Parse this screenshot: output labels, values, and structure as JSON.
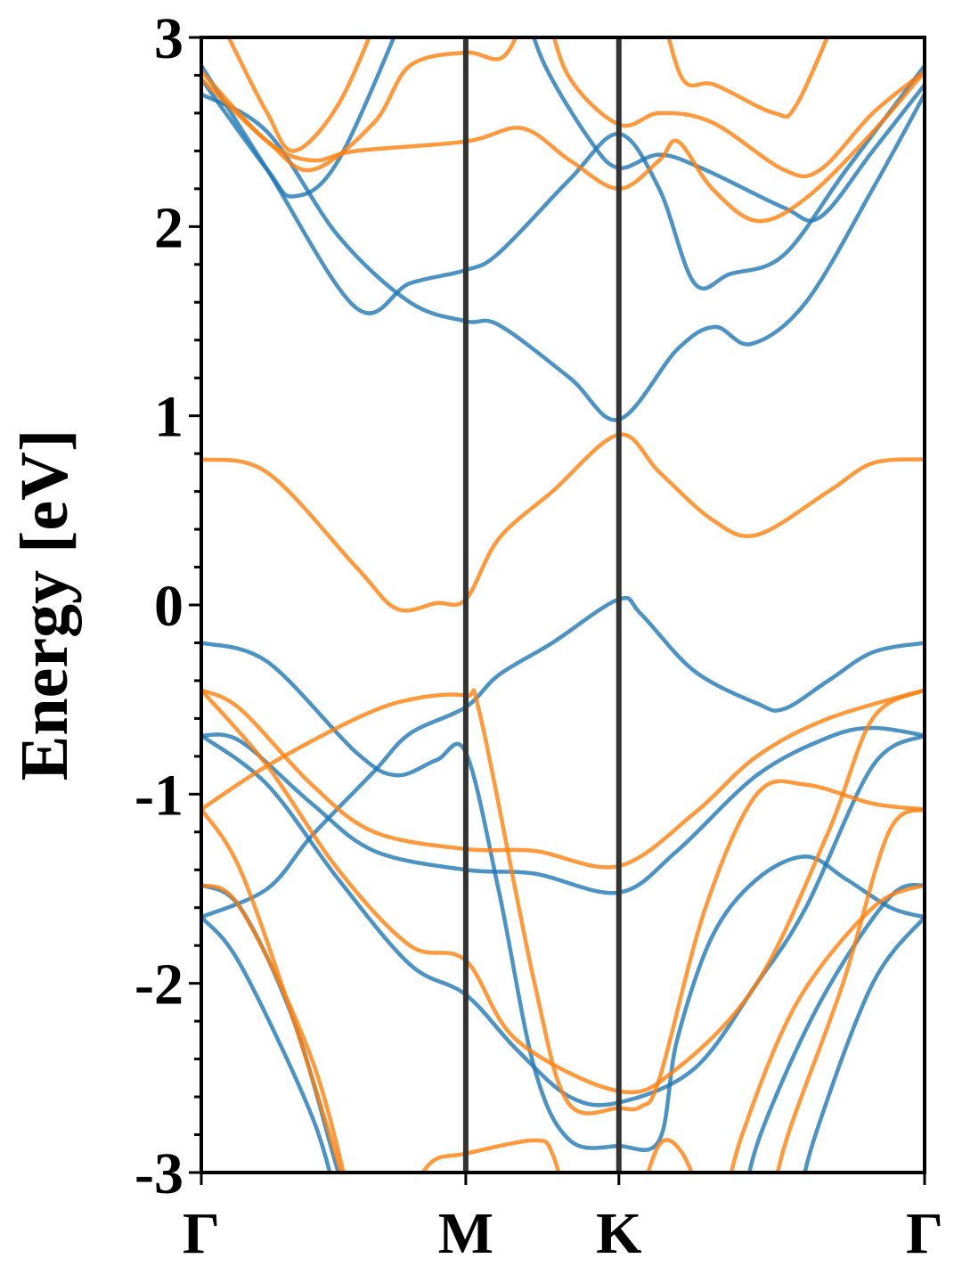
{
  "chart_data": {
    "type": "line",
    "title": "",
    "xlabel": "",
    "ylabel": "Energy [eV]",
    "ylim": [
      -3,
      3
    ],
    "xlim": [
      0,
      1.578
    ],
    "yticks": [
      3,
      2,
      1,
      0,
      -1,
      -2,
      -3
    ],
    "ytick_labels": [
      "3",
      "2",
      "1",
      "0",
      "-1",
      "-2",
      "-3"
    ],
    "y_minor_step": 0.2,
    "xticks": [
      0,
      0.577,
      0.911,
      1.578
    ],
    "xtick_labels": [
      "Γ",
      "M",
      "K",
      "Γ"
    ],
    "grid": false,
    "high_symmetry_lines": [
      0.577,
      0.911
    ],
    "colors": {
      "spin_a": "#1f77b4",
      "spin_b": "#ff7f0e",
      "symmetry_line": "#333333"
    },
    "series": [
      {
        "name": "blue-1",
        "color": "spin_a",
        "points": [
          [
            0,
            -0.2
          ],
          [
            0.144,
            -0.3
          ],
          [
            0.338,
            -0.78
          ],
          [
            0.426,
            -0.9
          ],
          [
            0.513,
            -0.82
          ],
          [
            0.577,
            -0.78
          ],
          [
            0.649,
            -1.51
          ],
          [
            0.727,
            -2.45
          ],
          [
            0.804,
            -2.83
          ],
          [
            0.911,
            -2.86
          ],
          [
            0.999,
            -2.83
          ],
          [
            1.038,
            -2.3
          ],
          [
            1.115,
            -1.75
          ],
          [
            1.212,
            -1.45
          ],
          [
            1.319,
            -1.33
          ],
          [
            1.407,
            -1.45
          ],
          [
            1.504,
            -1.6
          ],
          [
            1.578,
            -1.65
          ]
        ]
      },
      {
        "name": "blue-2",
        "color": "spin_a",
        "points": [
          [
            0,
            -1.65
          ],
          [
            0.144,
            -1.5
          ],
          [
            0.241,
            -1.22
          ],
          [
            0.377,
            -0.88
          ],
          [
            0.455,
            -0.68
          ],
          [
            0.577,
            -0.54
          ],
          [
            0.649,
            -0.37
          ],
          [
            0.766,
            -0.2
          ],
          [
            0.911,
            0.03
          ],
          [
            0.96,
            -0.05
          ],
          [
            1.076,
            -0.35
          ],
          [
            1.212,
            -0.52
          ],
          [
            1.271,
            -0.55
          ],
          [
            1.368,
            -0.4
          ],
          [
            1.465,
            -0.25
          ],
          [
            1.578,
            -0.2
          ]
        ]
      },
      {
        "name": "blue-3",
        "color": "spin_a",
        "points": [
          [
            0,
            -0.69
          ],
          [
            0.085,
            -0.72
          ],
          [
            0.241,
            -1.05
          ],
          [
            0.377,
            -1.3
          ],
          [
            0.577,
            -1.4
          ],
          [
            0.727,
            -1.42
          ],
          [
            0.911,
            -1.52
          ],
          [
            1.038,
            -1.3
          ],
          [
            1.212,
            -0.9
          ],
          [
            1.368,
            -0.7
          ],
          [
            1.465,
            -0.65
          ],
          [
            1.578,
            -0.69
          ]
        ]
      },
      {
        "name": "blue-4",
        "color": "spin_a",
        "points": [
          [
            0,
            -0.69
          ],
          [
            0.144,
            -0.95
          ],
          [
            0.299,
            -1.45
          ],
          [
            0.455,
            -1.9
          ],
          [
            0.577,
            -2.06
          ],
          [
            0.688,
            -2.35
          ],
          [
            0.804,
            -2.6
          ],
          [
            0.911,
            -2.63
          ],
          [
            1.076,
            -2.45
          ],
          [
            1.212,
            -2.0
          ],
          [
            1.319,
            -1.6
          ],
          [
            1.465,
            -0.85
          ],
          [
            1.578,
            -0.69
          ]
        ]
      },
      {
        "name": "blue-5",
        "color": "spin_a",
        "points": [
          [
            0,
            -1.48
          ],
          [
            0.085,
            -1.6
          ],
          [
            0.202,
            -2.2
          ],
          [
            0.299,
            -3.0
          ],
          [
            0.33,
            -3.2
          ]
        ]
      },
      {
        "name": "blue-6",
        "color": "spin_a",
        "points": [
          [
            0,
            -1.65
          ],
          [
            0.085,
            -1.9
          ],
          [
            0.241,
            -2.7
          ],
          [
            0.3,
            -3.2
          ]
        ]
      },
      {
        "name": "blue-7",
        "color": "spin_a",
        "points": [
          [
            1.3,
            -3.2
          ],
          [
            1.34,
            -2.8
          ],
          [
            1.465,
            -2.0
          ],
          [
            1.578,
            -1.65
          ]
        ]
      },
      {
        "name": "blue-8",
        "color": "spin_a",
        "points": [
          [
            1.18,
            -3.2
          ],
          [
            1.22,
            -2.8
          ],
          [
            1.35,
            -2.1
          ],
          [
            1.5,
            -1.55
          ],
          [
            1.578,
            -1.48
          ]
        ]
      },
      {
        "name": "blue-9",
        "color": "spin_a",
        "points": [
          [
            0,
            2.7
          ],
          [
            0.144,
            2.5
          ],
          [
            0.299,
            1.95
          ],
          [
            0.455,
            1.6
          ],
          [
            0.577,
            1.5
          ],
          [
            0.649,
            1.48
          ],
          [
            0.804,
            1.2
          ],
          [
            0.911,
            0.98
          ],
          [
            1.038,
            1.35
          ],
          [
            1.12,
            1.47
          ],
          [
            1.2,
            1.38
          ],
          [
            1.319,
            1.6
          ],
          [
            1.465,
            2.2
          ],
          [
            1.578,
            2.7
          ]
        ]
      },
      {
        "name": "blue-10",
        "color": "spin_a",
        "points": [
          [
            0,
            2.85
          ],
          [
            0.144,
            2.3
          ],
          [
            0.338,
            1.57
          ],
          [
            0.455,
            1.7
          ],
          [
            0.577,
            1.77
          ],
          [
            0.649,
            1.86
          ],
          [
            0.804,
            2.25
          ],
          [
            0.911,
            2.49
          ],
          [
            0.999,
            2.2
          ],
          [
            1.076,
            1.7
          ],
          [
            1.154,
            1.75
          ],
          [
            1.271,
            1.85
          ],
          [
            1.407,
            2.3
          ],
          [
            1.578,
            2.85
          ]
        ]
      },
      {
        "name": "blue-11",
        "color": "spin_a",
        "points": [
          [
            0,
            2.78
          ],
          [
            0.144,
            2.3
          ],
          [
            0.202,
            2.16
          ],
          [
            0.299,
            2.35
          ],
          [
            0.455,
            3.2
          ]
        ]
      },
      {
        "name": "blue-12",
        "color": "spin_a",
        "points": [
          [
            0.7,
            3.2
          ],
          [
            0.75,
            2.85
          ],
          [
            0.85,
            2.45
          ],
          [
            0.911,
            2.31
          ],
          [
            1.0,
            2.38
          ],
          [
            1.1,
            2.3
          ],
          [
            1.271,
            2.1
          ],
          [
            1.35,
            2.05
          ],
          [
            1.465,
            2.4
          ],
          [
            1.578,
            2.75
          ]
        ]
      },
      {
        "name": "orange-1",
        "color": "spin_b",
        "points": [
          [
            0,
            0.77
          ],
          [
            0.144,
            0.7
          ],
          [
            0.338,
            0.2
          ],
          [
            0.426,
            -0.02
          ],
          [
            0.513,
            0.01
          ],
          [
            0.577,
            0.03
          ],
          [
            0.649,
            0.35
          ],
          [
            0.766,
            0.6
          ],
          [
            0.911,
            0.9
          ],
          [
            1.0,
            0.7
          ],
          [
            1.115,
            0.45
          ],
          [
            1.212,
            0.37
          ],
          [
            1.368,
            0.6
          ],
          [
            1.465,
            0.75
          ],
          [
            1.578,
            0.77
          ]
        ]
      },
      {
        "name": "orange-2",
        "color": "spin_b",
        "points": [
          [
            0,
            -1.08
          ],
          [
            0.144,
            -0.85
          ],
          [
            0.338,
            -0.6
          ],
          [
            0.455,
            -0.5
          ],
          [
            0.577,
            -0.48
          ],
          [
            0.61,
            -0.6
          ],
          [
            0.727,
            -2.0
          ],
          [
            0.8,
            -2.63
          ],
          [
            0.911,
            -2.66
          ],
          [
            0.96,
            -2.65
          ],
          [
            1.0,
            -2.5
          ],
          [
            1.1,
            -1.6
          ],
          [
            1.212,
            -1.0
          ],
          [
            1.319,
            -0.95
          ],
          [
            1.465,
            -1.05
          ],
          [
            1.578,
            -1.08
          ]
        ]
      },
      {
        "name": "orange-3",
        "color": "spin_b",
        "points": [
          [
            0,
            -0.45
          ],
          [
            0.085,
            -0.55
          ],
          [
            0.241,
            -0.95
          ],
          [
            0.377,
            -1.2
          ],
          [
            0.577,
            -1.29
          ],
          [
            0.727,
            -1.3
          ],
          [
            0.911,
            -1.38
          ],
          [
            1.076,
            -1.1
          ],
          [
            1.212,
            -0.8
          ],
          [
            1.368,
            -0.6
          ],
          [
            1.578,
            -0.45
          ]
        ]
      },
      {
        "name": "orange-4",
        "color": "spin_b",
        "points": [
          [
            0,
            -0.45
          ],
          [
            0.144,
            -0.85
          ],
          [
            0.299,
            -1.4
          ],
          [
            0.455,
            -1.8
          ],
          [
            0.577,
            -1.88
          ],
          [
            0.688,
            -2.3
          ],
          [
            0.911,
            -2.57
          ],
          [
            1.038,
            -2.45
          ],
          [
            1.212,
            -2.0
          ],
          [
            1.368,
            -1.2
          ],
          [
            1.465,
            -0.6
          ],
          [
            1.578,
            -0.45
          ]
        ]
      },
      {
        "name": "orange-5",
        "color": "spin_b",
        "points": [
          [
            0,
            -1.08
          ],
          [
            0.085,
            -1.4
          ],
          [
            0.202,
            -2.2
          ],
          [
            0.299,
            -2.95
          ],
          [
            0.33,
            -3.2
          ]
        ]
      },
      {
        "name": "orange-6",
        "color": "spin_b",
        "points": [
          [
            0,
            -1.48
          ],
          [
            0.085,
            -1.6
          ],
          [
            0.241,
            -2.4
          ],
          [
            0.33,
            -3.2
          ]
        ]
      },
      {
        "name": "orange-7",
        "color": "spin_b",
        "points": [
          [
            1.14,
            -3.2
          ],
          [
            1.18,
            -2.8
          ],
          [
            1.3,
            -2.1
          ],
          [
            1.465,
            -1.6
          ],
          [
            1.578,
            -1.48
          ]
        ]
      },
      {
        "name": "orange-8",
        "color": "spin_b",
        "points": [
          [
            1.24,
            -3.2
          ],
          [
            1.28,
            -2.8
          ],
          [
            1.4,
            -2.0
          ],
          [
            1.5,
            -1.2
          ],
          [
            1.578,
            -1.08
          ]
        ]
      },
      {
        "name": "orange-9",
        "color": "spin_b",
        "points": [
          [
            0.44,
            -3.2
          ],
          [
            0.5,
            -2.95
          ],
          [
            0.577,
            -2.9
          ],
          [
            0.727,
            -2.83
          ],
          [
            0.766,
            -2.9
          ],
          [
            0.8,
            -3.2
          ]
        ]
      },
      {
        "name": "orange-10",
        "color": "spin_b",
        "points": [
          [
            0.95,
            -3.2
          ],
          [
            1.0,
            -2.85
          ],
          [
            1.05,
            -2.9
          ],
          [
            1.1,
            -3.2
          ]
        ]
      },
      {
        "name": "orange-11",
        "color": "spin_b",
        "points": [
          [
            0,
            2.82
          ],
          [
            0.144,
            2.45
          ],
          [
            0.241,
            2.35
          ],
          [
            0.338,
            2.4
          ],
          [
            0.577,
            2.45
          ],
          [
            0.7,
            2.52
          ],
          [
            0.804,
            2.35
          ],
          [
            0.911,
            2.2
          ],
          [
            0.999,
            2.35
          ],
          [
            1.04,
            2.45
          ],
          [
            1.115,
            2.2
          ],
          [
            1.212,
            2.03
          ],
          [
            1.319,
            2.15
          ],
          [
            1.465,
            2.5
          ],
          [
            1.578,
            2.82
          ]
        ]
      },
      {
        "name": "orange-12",
        "color": "spin_b",
        "points": [
          [
            0,
            2.78
          ],
          [
            0.144,
            2.45
          ],
          [
            0.241,
            2.3
          ],
          [
            0.377,
            2.55
          ],
          [
            0.455,
            2.85
          ],
          [
            0.577,
            2.92
          ],
          [
            0.66,
            2.9
          ],
          [
            0.72,
            3.2
          ]
        ]
      },
      {
        "name": "orange-13",
        "color": "spin_b",
        "points": [
          [
            0.75,
            3.2
          ],
          [
            0.8,
            2.8
          ],
          [
            0.911,
            2.54
          ],
          [
            1.0,
            2.6
          ],
          [
            1.115,
            2.55
          ],
          [
            1.271,
            2.3
          ],
          [
            1.35,
            2.3
          ],
          [
            1.465,
            2.6
          ],
          [
            1.578,
            2.82
          ]
        ]
      },
      {
        "name": "orange-14",
        "color": "spin_b",
        "points": [
          [
            0.02,
            3.2
          ],
          [
            0.08,
            2.9
          ],
          [
            0.144,
            2.6
          ],
          [
            0.202,
            2.4
          ],
          [
            0.3,
            2.65
          ],
          [
            0.4,
            3.2
          ]
        ]
      },
      {
        "name": "orange-15",
        "color": "spin_b",
        "points": [
          [
            1.0,
            3.2
          ],
          [
            1.05,
            2.78
          ],
          [
            1.12,
            2.75
          ],
          [
            1.25,
            2.6
          ],
          [
            1.3,
            2.65
          ],
          [
            1.4,
            3.2
          ]
        ]
      }
    ]
  }
}
